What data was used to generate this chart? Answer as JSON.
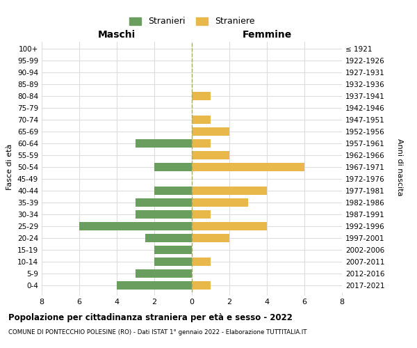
{
  "age_groups": [
    "0-4",
    "5-9",
    "10-14",
    "15-19",
    "20-24",
    "25-29",
    "30-34",
    "35-39",
    "40-44",
    "45-49",
    "50-54",
    "55-59",
    "60-64",
    "65-69",
    "70-74",
    "75-79",
    "80-84",
    "85-89",
    "90-94",
    "95-99",
    "100+"
  ],
  "birth_years": [
    "2017-2021",
    "2012-2016",
    "2007-2011",
    "2002-2006",
    "1997-2001",
    "1992-1996",
    "1987-1991",
    "1982-1986",
    "1977-1981",
    "1972-1976",
    "1967-1971",
    "1962-1966",
    "1957-1961",
    "1952-1956",
    "1947-1951",
    "1942-1946",
    "1937-1941",
    "1932-1936",
    "1927-1931",
    "1922-1926",
    "≤ 1921"
  ],
  "males": [
    4,
    3,
    2,
    2,
    2.5,
    6,
    3,
    3,
    2,
    0,
    2,
    0,
    3,
    0,
    0,
    0,
    0,
    0,
    0,
    0,
    0
  ],
  "females": [
    1,
    0,
    1,
    0,
    2,
    4,
    1,
    3,
    4,
    0,
    6,
    2,
    1,
    2,
    1,
    0,
    1,
    0,
    0,
    0,
    0
  ],
  "male_color": "#6a9e5e",
  "female_color": "#e8b84b",
  "bar_height": 0.72,
  "xlim": 8,
  "title1": "Popolazione per cittadinanza straniera per età e sesso - 2022",
  "title2": "COMUNE DI PONTECCHIO POLESINE (RO) - Dati ISTAT 1° gennaio 2022 - Elaborazione TUTTITALIA.IT",
  "legend_male": "Stranieri",
  "legend_female": "Straniere",
  "xlabel_left": "Maschi",
  "xlabel_right": "Femmine",
  "ylabel_left": "Fasce di età",
  "ylabel_right": "Anni di nascita",
  "grid_color": "#dddddd",
  "bg_color": "#ffffff",
  "center_line_color": "#aaa866",
  "fig_width": 6.0,
  "fig_height": 5.0,
  "dpi": 100
}
